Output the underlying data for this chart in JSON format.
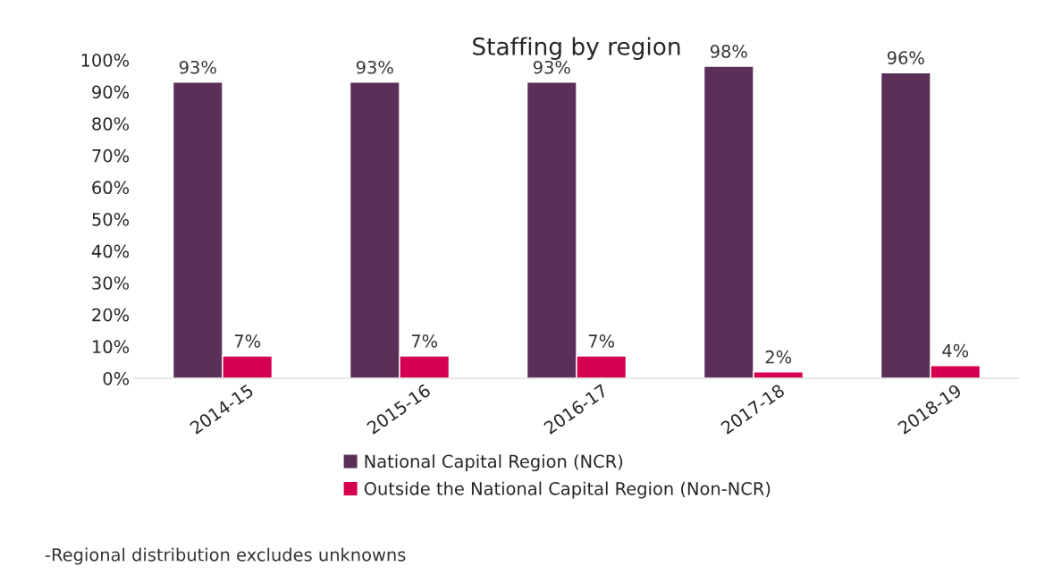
{
  "chart_data": {
    "type": "bar",
    "title": "Staffing by region",
    "categories": [
      "2014-15",
      "2015-16",
      "2016-17",
      "2017-18",
      "2018-19"
    ],
    "series": [
      {
        "name": "National Capital Region (NCR)",
        "color": "#5a3059",
        "values": [
          93,
          93,
          93,
          98,
          96
        ]
      },
      {
        "name": "Outside the National Capital Region (Non-NCR)",
        "color": "#d5004f",
        "values": [
          7,
          7,
          7,
          2,
          4
        ]
      }
    ],
    "ylim": [
      0,
      100
    ],
    "yticks": [
      {
        "value": 0,
        "label": "0%"
      },
      {
        "value": 10,
        "label": "10%"
      },
      {
        "value": 20,
        "label": "20%"
      },
      {
        "value": 30,
        "label": "30%"
      },
      {
        "value": 40,
        "label": "40%"
      },
      {
        "value": 50,
        "label": "50%"
      },
      {
        "value": 60,
        "label": "60%"
      },
      {
        "value": 70,
        "label": "70%"
      },
      {
        "value": 80,
        "label": "80%"
      },
      {
        "value": 90,
        "label": "90%"
      },
      {
        "value": 100,
        "label": "100%"
      }
    ],
    "value_labels": [
      [
        "93%",
        "93%",
        "93%",
        "98%",
        "96%"
      ],
      [
        "7%",
        "7%",
        "7%",
        "2%",
        "4%"
      ]
    ],
    "grid": false,
    "legend": "bottom",
    "annotations": [
      "-Regional distribution excludes unknowns"
    ]
  }
}
